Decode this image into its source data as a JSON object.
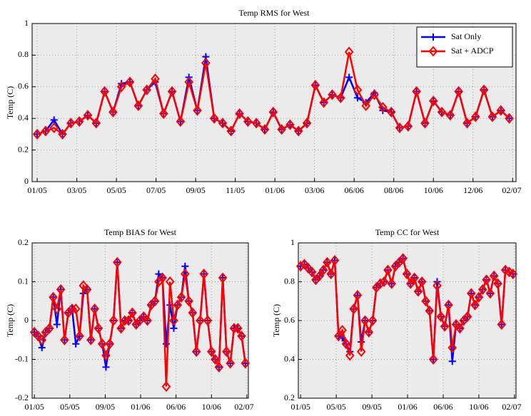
{
  "chart_data": [
    {
      "type": "line",
      "title": "Temp RMS for West",
      "ylabel": "Temp (C)",
      "legend": "upper right",
      "grid": true,
      "x": [
        0,
        0.5,
        1,
        1.5,
        2,
        2.5,
        3,
        3.5,
        4,
        4.5,
        5,
        5.5,
        6,
        6.5,
        7,
        7.5,
        8,
        8.5,
        9,
        9.5,
        10,
        10.5,
        11,
        11.5,
        12,
        12.5,
        13,
        13.5,
        14,
        14.5,
        15,
        15.5,
        16,
        16.5,
        17,
        17.5,
        18,
        18.5,
        19,
        19.5,
        20,
        20.5,
        21,
        21.5,
        22,
        22.5,
        23,
        23.5,
        24,
        24.5,
        25,
        25.5,
        26,
        26.5,
        27,
        27.5,
        28
      ],
      "xlim": [
        -0.3,
        28.4
      ],
      "xticks": [
        {
          "value": 0,
          "label": "01/05"
        },
        {
          "value": 2.35,
          "label": "03/05"
        },
        {
          "value": 4.7,
          "label": "05/05"
        },
        {
          "value": 7.05,
          "label": "07/05"
        },
        {
          "value": 9.4,
          "label": "09/05"
        },
        {
          "value": 11.75,
          "label": "11/05"
        },
        {
          "value": 14.1,
          "label": "01/06"
        },
        {
          "value": 16.45,
          "label": "03/06"
        },
        {
          "value": 18.8,
          "label": "06/06"
        },
        {
          "value": 21.15,
          "label": "08/06"
        },
        {
          "value": 23.5,
          "label": "10/06"
        },
        {
          "value": 25.85,
          "label": "12/06"
        },
        {
          "value": 28.2,
          "label": "02/07"
        }
      ],
      "ylim": [
        0,
        1
      ],
      "yticks": [
        0,
        0.2,
        0.4,
        0.6,
        0.8,
        1
      ],
      "series": [
        {
          "name": "Sat Only",
          "color": "#0000ff",
          "marker": "plus",
          "values": [
            0.3,
            0.32,
            0.39,
            0.3,
            0.37,
            0.38,
            0.42,
            0.37,
            0.57,
            0.44,
            0.62,
            0.63,
            0.48,
            0.58,
            0.63,
            0.43,
            0.57,
            0.38,
            0.66,
            0.45,
            0.79,
            0.4,
            0.37,
            0.32,
            0.43,
            0.38,
            0.37,
            0.33,
            0.44,
            0.33,
            0.36,
            0.32,
            0.37,
            0.61,
            0.5,
            0.55,
            0.53,
            0.66,
            0.53,
            0.5,
            0.56,
            0.45,
            0.44,
            0.34,
            0.35,
            0.57,
            0.37,
            0.51,
            0.44,
            0.42,
            0.57,
            0.37,
            0.41,
            0.58,
            0.41,
            0.45,
            0.4
          ]
        },
        {
          "name": "Sat + ADCP",
          "color": "#ff0000",
          "marker": "diamond",
          "values": [
            0.3,
            0.32,
            0.34,
            0.3,
            0.37,
            0.38,
            0.42,
            0.37,
            0.57,
            0.44,
            0.6,
            0.63,
            0.48,
            0.58,
            0.65,
            0.43,
            0.57,
            0.38,
            0.63,
            0.45,
            0.75,
            0.4,
            0.37,
            0.32,
            0.43,
            0.38,
            0.37,
            0.33,
            0.44,
            0.33,
            0.36,
            0.32,
            0.37,
            0.61,
            0.5,
            0.55,
            0.53,
            0.82,
            0.58,
            0.48,
            0.55,
            0.47,
            0.44,
            0.34,
            0.35,
            0.57,
            0.37,
            0.51,
            0.44,
            0.42,
            0.57,
            0.37,
            0.41,
            0.58,
            0.41,
            0.45,
            0.4
          ]
        }
      ]
    },
    {
      "type": "line",
      "title": "Temp BIAS for West",
      "ylabel": "Temp (C)",
      "grid": true,
      "x": [
        0,
        0.5,
        1,
        1.5,
        2,
        2.5,
        3,
        3.5,
        4,
        4.5,
        5,
        5.5,
        6,
        6.5,
        7,
        7.5,
        8,
        8.5,
        9,
        9.5,
        10,
        10.5,
        11,
        11.5,
        12,
        12.5,
        13,
        13.5,
        14,
        14.5,
        15,
        15.5,
        16,
        16.5,
        17,
        17.5,
        18,
        18.5,
        19,
        19.5,
        20,
        20.5,
        21,
        21.5,
        22,
        22.5,
        23,
        23.5,
        24,
        24.5,
        25,
        25.5,
        26,
        26.5,
        27,
        27.5,
        28
      ],
      "xlim": [
        -0.3,
        28.4
      ],
      "xticks": [
        {
          "value": 0,
          "label": "01/05"
        },
        {
          "value": 4.7,
          "label": "05/05"
        },
        {
          "value": 9.4,
          "label": "09/05"
        },
        {
          "value": 14.1,
          "label": "01/06"
        },
        {
          "value": 18.8,
          "label": "06/06"
        },
        {
          "value": 23.5,
          "label": "10/06"
        },
        {
          "value": 28.2,
          "label": "02/07"
        }
      ],
      "ylim": [
        -0.2,
        0.2
      ],
      "yticks": [
        -0.2,
        -0.1,
        0,
        0.1,
        0.2
      ],
      "series": [
        {
          "color": "#0000ff",
          "marker": "plus",
          "values": [
            -0.03,
            -0.04,
            -0.07,
            -0.03,
            -0.02,
            0.06,
            -0.01,
            0.08,
            -0.05,
            0.02,
            0.03,
            -0.06,
            -0.04,
            0.07,
            0.08,
            -0.05,
            0.03,
            -0.02,
            -0.06,
            -0.12,
            -0.06,
            0.0,
            0.15,
            -0.02,
            0.0,
            0.0,
            0.02,
            -0.01,
            0.0,
            0.01,
            0.0,
            0.04,
            0.05,
            0.12,
            0.11,
            -0.06,
            0.04,
            -0.02,
            0.04,
            0.06,
            0.14,
            0.05,
            0.02,
            -0.08,
            0.0,
            0.12,
            0.0,
            -0.08,
            -0.1,
            -0.12,
            0.11,
            -0.08,
            -0.11,
            -0.02,
            -0.02,
            -0.04,
            -0.11
          ]
        },
        {
          "color": "#ff0000",
          "marker": "diamond",
          "values": [
            -0.03,
            -0.04,
            -0.05,
            -0.03,
            -0.02,
            0.06,
            0.03,
            0.08,
            -0.05,
            0.02,
            0.03,
            0.03,
            -0.04,
            0.09,
            0.08,
            -0.05,
            0.03,
            -0.02,
            -0.06,
            -0.09,
            -0.06,
            0.0,
            0.15,
            -0.02,
            0.0,
            0.0,
            0.02,
            -0.01,
            0.0,
            0.01,
            0.0,
            0.04,
            0.05,
            0.1,
            0.11,
            -0.17,
            0.1,
            0.0,
            0.04,
            0.06,
            0.12,
            0.05,
            0.02,
            -0.08,
            0.0,
            0.12,
            0.0,
            -0.08,
            -0.1,
            -0.12,
            0.11,
            -0.08,
            -0.11,
            -0.02,
            -0.02,
            -0.04,
            -0.11
          ]
        }
      ]
    },
    {
      "type": "line",
      "title": "Temp CC for West",
      "ylabel": "Temp (C)",
      "grid": true,
      "x": [
        0,
        0.5,
        1,
        1.5,
        2,
        2.5,
        3,
        3.5,
        4,
        4.5,
        5,
        5.5,
        6,
        6.5,
        7,
        7.5,
        8,
        8.5,
        9,
        9.5,
        10,
        10.5,
        11,
        11.5,
        12,
        12.5,
        13,
        13.5,
        14,
        14.5,
        15,
        15.5,
        16,
        16.5,
        17,
        17.5,
        18,
        18.5,
        19,
        19.5,
        20,
        20.5,
        21,
        21.5,
        22,
        22.5,
        23,
        23.5,
        24,
        24.5,
        25,
        25.5,
        26,
        26.5,
        27,
        27.5,
        28
      ],
      "xlim": [
        -0.3,
        28.4
      ],
      "xticks": [
        {
          "value": 0,
          "label": "01/05"
        },
        {
          "value": 4.7,
          "label": "05/05"
        },
        {
          "value": 9.4,
          "label": "09/05"
        },
        {
          "value": 14.1,
          "label": "01/06"
        },
        {
          "value": 18.8,
          "label": "06/06"
        },
        {
          "value": 23.5,
          "label": "10/06"
        },
        {
          "value": 28.2,
          "label": "02/07"
        }
      ],
      "ylim": [
        0.2,
        1
      ],
      "yticks": [
        0.2,
        0.4,
        0.6,
        0.8,
        1
      ],
      "series": [
        {
          "color": "#0000ff",
          "marker": "plus",
          "values": [
            0.88,
            0.89,
            0.87,
            0.85,
            0.81,
            0.83,
            0.86,
            0.9,
            0.84,
            0.91,
            0.52,
            0.51,
            0.48,
            0.44,
            0.66,
            0.73,
            0.49,
            0.6,
            0.54,
            0.6,
            0.77,
            0.79,
            0.8,
            0.86,
            0.79,
            0.88,
            0.9,
            0.92,
            0.84,
            0.79,
            0.82,
            0.75,
            0.8,
            0.7,
            0.65,
            0.4,
            0.8,
            0.62,
            0.57,
            0.68,
            0.39,
            0.58,
            0.56,
            0.6,
            0.62,
            0.74,
            0.68,
            0.72,
            0.76,
            0.81,
            0.74,
            0.83,
            0.79,
            0.58,
            0.86,
            0.85,
            0.84
          ]
        },
        {
          "color": "#ff0000",
          "marker": "diamond",
          "values": [
            0.88,
            0.89,
            0.87,
            0.85,
            0.81,
            0.83,
            0.86,
            0.9,
            0.84,
            0.91,
            0.52,
            0.55,
            0.48,
            0.42,
            0.66,
            0.73,
            0.44,
            0.6,
            0.54,
            0.6,
            0.77,
            0.79,
            0.8,
            0.86,
            0.79,
            0.88,
            0.9,
            0.92,
            0.84,
            0.79,
            0.82,
            0.75,
            0.8,
            0.7,
            0.65,
            0.4,
            0.78,
            0.62,
            0.57,
            0.68,
            0.46,
            0.58,
            0.56,
            0.6,
            0.62,
            0.74,
            0.68,
            0.72,
            0.76,
            0.81,
            0.74,
            0.83,
            0.79,
            0.58,
            0.86,
            0.85,
            0.84
          ]
        }
      ]
    }
  ]
}
